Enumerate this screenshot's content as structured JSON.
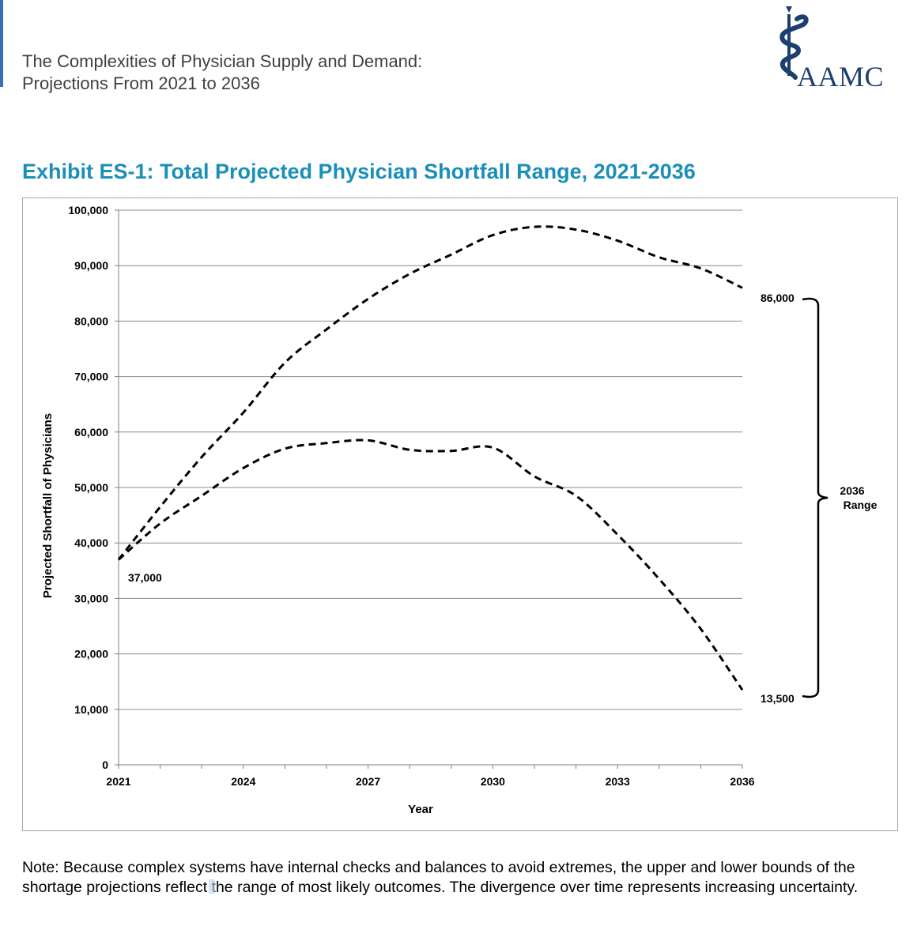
{
  "header": {
    "title_line1": "The Complexities of Physician Supply and Demand:",
    "title_line2": "Projections From 2021 to 2036",
    "logo_text": "AAMC"
  },
  "exhibit_title": "Exhibit ES-1: Total Projected Physician Shortfall Range, 2021-2036",
  "chart_data": {
    "type": "line",
    "title": "Exhibit ES-1: Total Projected Physician Shortfall Range, 2021-2036",
    "xlabel": "Year",
    "ylabel": "Projected Shortfall of Physicians",
    "xlim": [
      2021,
      2036
    ],
    "ylim": [
      0,
      100000
    ],
    "x_ticks": [
      2021,
      2024,
      2027,
      2030,
      2033,
      2036
    ],
    "y_ticks": [
      0,
      10000,
      20000,
      30000,
      40000,
      50000,
      60000,
      70000,
      80000,
      90000,
      100000
    ],
    "y_tick_labels": [
      "0",
      "10,000",
      "20,000",
      "30,000",
      "40,000",
      "50,000",
      "60,000",
      "70,000",
      "80,000",
      "90,000",
      "100,000"
    ],
    "x_tick_labels": [
      "2021",
      "2024",
      "2027",
      "2030",
      "2033",
      "2036"
    ],
    "grid": true,
    "line_style": "dashed",
    "series": [
      {
        "name": "Upper bound",
        "x": [
          2021,
          2022,
          2023,
          2024,
          2025,
          2026,
          2027,
          2028,
          2029,
          2030,
          2031,
          2032,
          2033,
          2034,
          2035,
          2036
        ],
        "values": [
          37000,
          46500,
          55500,
          63500,
          72500,
          78500,
          84000,
          88500,
          92000,
          95500,
          97000,
          96500,
          94500,
          91500,
          89500,
          86000
        ]
      },
      {
        "name": "Lower bound",
        "x": [
          2021,
          2022,
          2023,
          2024,
          2025,
          2026,
          2027,
          2028,
          2029,
          2030,
          2031,
          2032,
          2033,
          2034,
          2035,
          2036
        ],
        "values": [
          37000,
          43500,
          48500,
          53500,
          57000,
          58000,
          58500,
          56800,
          56600,
          57200,
          52000,
          48500,
          41500,
          33500,
          24500,
          13500
        ]
      }
    ],
    "annotations": {
      "start_label": "37,000",
      "upper_end_label": "86,000",
      "lower_end_label": "13,500",
      "range_label_line1": "2036",
      "range_label_line2": "Range"
    }
  },
  "note": {
    "text_before": "Note: Because complex systems have internal checks and balances to avoid extremes, the upper and lower bounds of the shortage projections reflect ",
    "text_after": "the range of most likely outcomes. The divergence over time represents increasing uncertainty."
  }
}
